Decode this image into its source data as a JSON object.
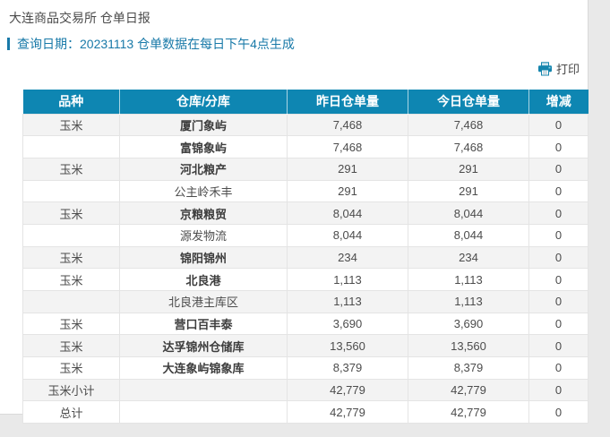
{
  "page": {
    "title": "大连商品交易所 仓单日报",
    "query_line": "查询日期：20231113 仓单数据在每日下午4点生成"
  },
  "toolbar": {
    "print_label": "打印",
    "print_icon": "printer-icon"
  },
  "colors": {
    "header_bg": "#0e86b2",
    "accent_blue": "#1879a8",
    "row_alt_bg": "#f3f3f3",
    "page_bg": "#e9e9e9"
  },
  "table": {
    "columns": [
      "品种",
      "仓库/分库",
      "昨日仓单量",
      "今日仓单量",
      "增减"
    ],
    "rows": [
      {
        "variety": "玉米",
        "warehouse": "厦门象屿",
        "yesterday": "7,468",
        "today": "7,468",
        "change": "0",
        "bold": true
      },
      {
        "variety": "",
        "warehouse": "富锦象屿",
        "yesterday": "7,468",
        "today": "7,468",
        "change": "0",
        "bold": true
      },
      {
        "variety": "玉米",
        "warehouse": "河北粮产",
        "yesterday": "291",
        "today": "291",
        "change": "0",
        "bold": true
      },
      {
        "variety": "",
        "warehouse": "公主岭禾丰",
        "yesterday": "291",
        "today": "291",
        "change": "0",
        "bold": false
      },
      {
        "variety": "玉米",
        "warehouse": "京粮粮贸",
        "yesterday": "8,044",
        "today": "8,044",
        "change": "0",
        "bold": true
      },
      {
        "variety": "",
        "warehouse": "源发物流",
        "yesterday": "8,044",
        "today": "8,044",
        "change": "0",
        "bold": false
      },
      {
        "variety": "玉米",
        "warehouse": "锦阳锦州",
        "yesterday": "234",
        "today": "234",
        "change": "0",
        "bold": true
      },
      {
        "variety": "玉米",
        "warehouse": "北良港",
        "yesterday": "1,113",
        "today": "1,113",
        "change": "0",
        "bold": true
      },
      {
        "variety": "",
        "warehouse": "北良港主库区",
        "yesterday": "1,113",
        "today": "1,113",
        "change": "0",
        "bold": false
      },
      {
        "variety": "玉米",
        "warehouse": "营口百丰泰",
        "yesterday": "3,690",
        "today": "3,690",
        "change": "0",
        "bold": true
      },
      {
        "variety": "玉米",
        "warehouse": "达孚锦州仓储库",
        "yesterday": "13,560",
        "today": "13,560",
        "change": "0",
        "bold": true
      },
      {
        "variety": "玉米",
        "warehouse": "大连象屿锦象库",
        "yesterday": "8,379",
        "today": "8,379",
        "change": "0",
        "bold": true
      },
      {
        "variety": "玉米小计",
        "warehouse": "",
        "yesterday": "42,779",
        "today": "42,779",
        "change": "0",
        "bold": false
      },
      {
        "variety": "总计",
        "warehouse": "",
        "yesterday": "42,779",
        "today": "42,779",
        "change": "0",
        "bold": false
      }
    ]
  }
}
